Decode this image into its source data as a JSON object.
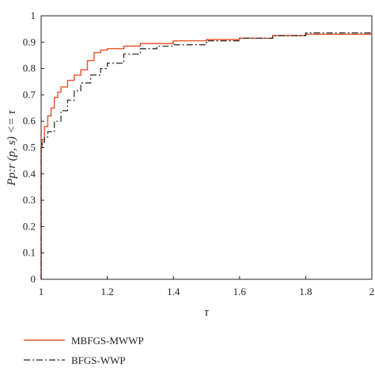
{
  "chart_data": {
    "type": "line",
    "xlabel": "τ",
    "ylabel": "Pp:r (p, s) <= τ",
    "xlim": [
      1,
      2
    ],
    "ylim": [
      0,
      1
    ],
    "xticks": [
      "1",
      "1.2",
      "1.4",
      "1.6",
      "1.8",
      "2"
    ],
    "yticks": [
      "0",
      "0.1",
      "0.2",
      "0.3",
      "0.4",
      "0.5",
      "0.6",
      "0.7",
      "0.8",
      "0.9",
      "1"
    ],
    "grid": false,
    "legend_position": "bottom-left, below plot",
    "series": [
      {
        "name": "MBFGS-MWWP",
        "color": "#e8522a",
        "style": "solid",
        "x": [
          1.0,
          1.0,
          1.003,
          1.01,
          1.02,
          1.03,
          1.04,
          1.05,
          1.06,
          1.08,
          1.1,
          1.12,
          1.14,
          1.16,
          1.18,
          1.2,
          1.25,
          1.3,
          1.4,
          1.5,
          1.6,
          1.7,
          1.8,
          1.9,
          2.0
        ],
        "y": [
          0.0,
          0.5,
          0.53,
          0.58,
          0.62,
          0.65,
          0.69,
          0.71,
          0.73,
          0.755,
          0.775,
          0.795,
          0.83,
          0.86,
          0.87,
          0.875,
          0.885,
          0.895,
          0.905,
          0.91,
          0.915,
          0.925,
          0.93,
          0.93,
          0.93
        ]
      },
      {
        "name": "BFGS-WWP",
        "color": "#222222",
        "style": "dashdot",
        "x": [
          1.0,
          1.0,
          1.003,
          1.01,
          1.02,
          1.04,
          1.06,
          1.08,
          1.1,
          1.12,
          1.15,
          1.18,
          1.2,
          1.25,
          1.3,
          1.35,
          1.4,
          1.5,
          1.6,
          1.7,
          1.8,
          1.9,
          2.0
        ],
        "y": [
          0.0,
          0.5,
          0.52,
          0.54,
          0.56,
          0.6,
          0.64,
          0.68,
          0.715,
          0.745,
          0.775,
          0.8,
          0.82,
          0.855,
          0.875,
          0.885,
          0.89,
          0.905,
          0.915,
          0.925,
          0.935,
          0.935,
          0.935
        ]
      }
    ]
  }
}
